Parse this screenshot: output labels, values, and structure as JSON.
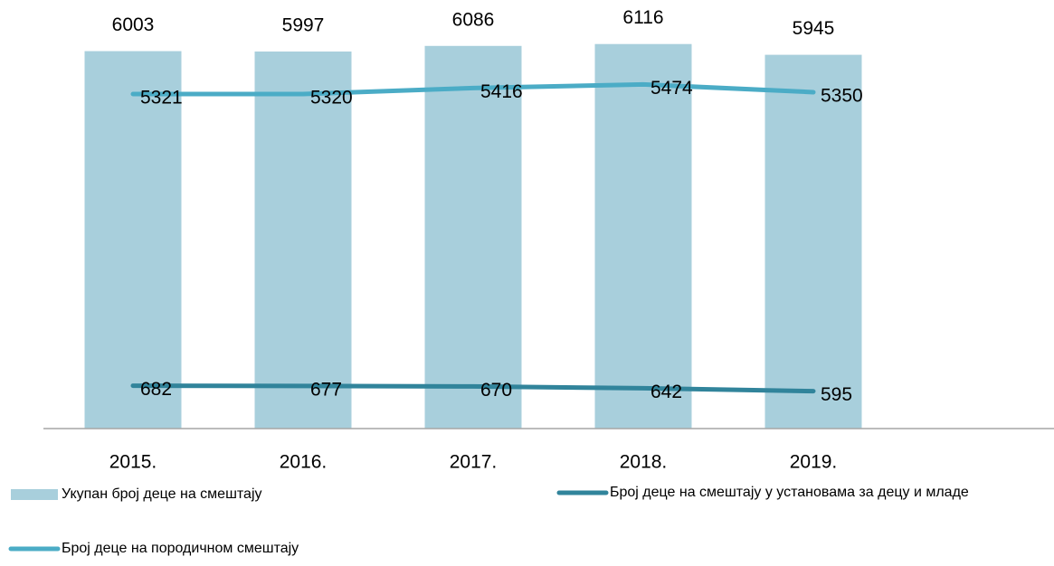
{
  "chart_data": {
    "type": "bar",
    "categories": [
      "2015.",
      "2016.",
      "2017.",
      "2018.",
      "2019."
    ],
    "series": [
      {
        "name": "Укупан број деце на смештају",
        "type": "bar",
        "color": "#a8cfdc",
        "values": [
          6003,
          5997,
          6086,
          6116,
          5945
        ]
      },
      {
        "name": "Број деце на смештају у установама за децу и младе",
        "type": "line",
        "color": "#31849b",
        "values": [
          682,
          677,
          670,
          642,
          595
        ]
      },
      {
        "name": "Број деце на породичном смештају",
        "type": "line",
        "color": "#4bacc6",
        "values": [
          5321,
          5320,
          5416,
          5474,
          5350
        ]
      }
    ],
    "ylim": [
      0,
      6500
    ],
    "grid": false
  }
}
